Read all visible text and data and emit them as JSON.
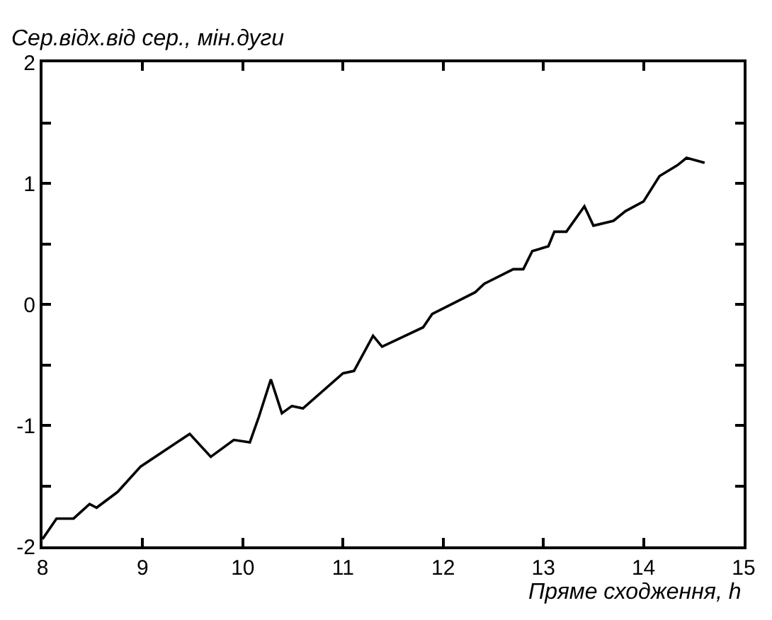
{
  "chart_data": {
    "type": "line",
    "ylabel": "Сер.відх.від сер., мін.дуги",
    "xlabel": "Пряме сходження, h",
    "x": [
      8.0,
      8.14,
      8.31,
      8.47,
      8.54,
      8.75,
      8.98,
      9.47,
      9.68,
      9.91,
      10.07,
      10.16,
      10.28,
      10.39,
      10.49,
      10.6,
      11.0,
      11.11,
      11.3,
      11.39,
      11.8,
      11.89,
      12.32,
      12.41,
      12.7,
      12.8,
      12.89,
      13.05,
      13.11,
      13.23,
      13.41,
      13.5,
      13.7,
      13.82,
      14.0,
      14.16,
      14.34,
      14.43,
      14.61
    ],
    "series": [
      {
        "color": "#000000",
        "values": [
          -1.94,
          -1.77,
          -1.77,
          -1.65,
          -1.68,
          -1.55,
          -1.34,
          -1.07,
          -1.26,
          -1.12,
          -1.14,
          -0.93,
          -0.62,
          -0.9,
          -0.84,
          -0.86,
          -0.57,
          -0.55,
          -0.26,
          -0.35,
          -0.19,
          -0.08,
          0.1,
          0.17,
          0.29,
          0.29,
          0.44,
          0.48,
          0.6,
          0.6,
          0.81,
          0.65,
          0.69,
          0.77,
          0.85,
          1.06,
          1.15,
          1.21,
          1.17
        ]
      }
    ],
    "xlim": [
      8,
      15
    ],
    "xticks": [
      8,
      9,
      10,
      11,
      12,
      13,
      14,
      15
    ],
    "ylim": [
      -2,
      2
    ],
    "yticks": [
      -2,
      {
        "value": -1.5,
        "label": null
      },
      -1,
      {
        "value": -0.5,
        "label": null
      },
      0,
      {
        "value": 0.5,
        "label": null
      },
      1,
      {
        "value": 1.5,
        "label": null
      },
      2
    ],
    "marker": "none",
    "line_style": "solid"
  }
}
